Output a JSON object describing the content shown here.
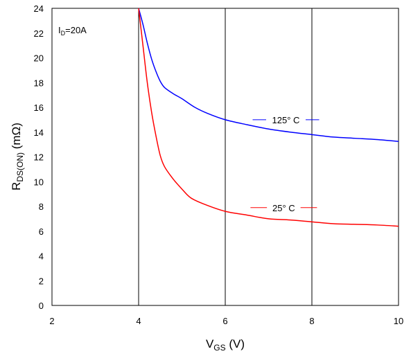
{
  "chart_data": {
    "type": "line",
    "title": "",
    "annotation": {
      "main": "I",
      "sub": "D",
      "rest": "=20A"
    },
    "xlabel": {
      "main": "V",
      "sub": "GS",
      "rest": " (V)"
    },
    "ylabel": {
      "main": "R",
      "sub": "DS(ON)",
      "rest": " (mΩ)"
    },
    "xlim": [
      2,
      10
    ],
    "ylim": [
      0,
      24
    ],
    "xticks": [
      "2",
      "4",
      "6",
      "8",
      "10"
    ],
    "yticks": [
      "0",
      "2",
      "4",
      "6",
      "8",
      "10",
      "12",
      "14",
      "16",
      "18",
      "20",
      "22",
      "24"
    ],
    "grid": {
      "vertical": true,
      "horizontal": false
    },
    "series": [
      {
        "name": "125° C",
        "color": "#0000ff",
        "x": [
          4.0,
          4.1,
          4.2,
          4.3,
          4.4,
          4.5,
          4.6,
          4.8,
          5.0,
          5.3,
          5.6,
          6.0,
          6.5,
          7.0,
          7.5,
          8.0,
          8.5,
          9.0,
          9.5,
          10.0
        ],
        "y": [
          24.0,
          22.7,
          21.2,
          19.9,
          18.9,
          18.1,
          17.6,
          17.1,
          16.7,
          16.0,
          15.5,
          15.0,
          14.6,
          14.25,
          14.0,
          13.8,
          13.6,
          13.5,
          13.4,
          13.25
        ]
      },
      {
        "name": "25° C",
        "color": "#ff0000",
        "x": [
          4.0,
          4.1,
          4.2,
          4.3,
          4.4,
          4.5,
          4.6,
          4.8,
          5.0,
          5.2,
          5.5,
          6.0,
          6.5,
          7.0,
          7.5,
          8.0,
          8.5,
          9.0,
          9.5,
          10.0
        ],
        "y": [
          24.0,
          21.0,
          18.0,
          15.6,
          13.7,
          12.1,
          11.2,
          10.2,
          9.4,
          8.7,
          8.2,
          7.6,
          7.3,
          7.0,
          6.9,
          6.75,
          6.6,
          6.55,
          6.5,
          6.4
        ]
      }
    ],
    "labels": [
      {
        "text": "125° C",
        "series": "125° C",
        "x": 7.4,
        "y": 15.0
      },
      {
        "text": "25° C",
        "series": "25° C",
        "x": 7.35,
        "y": 7.9
      }
    ]
  }
}
